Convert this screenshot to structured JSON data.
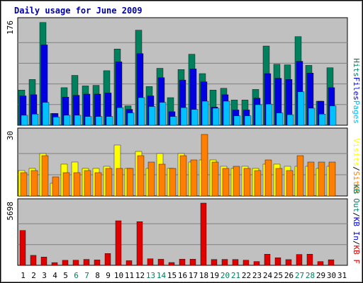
{
  "chart_data": {
    "type": "bar",
    "title": "Daily usage for June 2009",
    "categories": [
      "1",
      "2",
      "3",
      "4",
      "5",
      "6",
      "7",
      "8",
      "9",
      "10",
      "11",
      "12",
      "13",
      "14",
      "15",
      "16",
      "17",
      "18",
      "19",
      "20",
      "21",
      "22",
      "23",
      "24",
      "25",
      "26",
      "27",
      "28",
      "29",
      "30",
      "31"
    ],
    "weekend_days": [
      "6",
      "7",
      "13",
      "14",
      "20",
      "21",
      "27",
      "28"
    ],
    "colors": {
      "title": "#0000a0",
      "weekday_label": "#000000",
      "weekend_label": "#00805c",
      "hits": "#00805c",
      "files": "#0000e0",
      "pages": "#00c0ff",
      "visits": "#ffff00",
      "sites": "#ff8000",
      "kb_in": "#0000e0",
      "kb_out": "#00805c",
      "kb_f": "#e00000",
      "panel_bg": "#c0c0c0"
    },
    "panels": [
      {
        "name": "hits-files-pages",
        "ymax_label": "176",
        "ylim": [
          0,
          176
        ],
        "legend": [
          {
            "label": "Pages",
            "color": "#00c0ff"
          },
          {
            "label": "Files",
            "color": "#0000e0"
          },
          {
            "label": "Hits",
            "color": "#00805c"
          }
        ],
        "series": [
          {
            "name": "Hits",
            "values": [
              60,
              78,
              175,
              20,
              64,
              85,
              67,
              68,
              93,
              130,
              33,
              162,
              66,
              97,
              47,
              95,
              121,
              88,
              60,
              63,
              43,
              43,
              61,
              135,
              104,
              103,
              151,
              102,
              41,
              98,
              0
            ]
          },
          {
            "name": "Files",
            "values": [
              50,
              52,
              137,
              20,
              48,
              51,
              53,
              53,
              55,
              108,
              27,
              122,
              50,
              81,
              23,
              77,
              96,
              74,
              31,
              52,
              26,
              26,
              46,
              88,
              80,
              78,
              109,
              89,
              41,
              64,
              0
            ]
          },
          {
            "name": "Pages",
            "values": [
              17,
              19,
              39,
              14,
              17,
              17,
              15,
              15,
              15,
              30,
              21,
              47,
              32,
              39,
              15,
              30,
              27,
              41,
              29,
              41,
              16,
              16,
              35,
              36,
              21,
              18,
              57,
              29,
              19,
              33,
              0
            ]
          }
        ]
      },
      {
        "name": "visits-sites",
        "ymax_label": "30",
        "ylim": [
          0,
          30
        ],
        "legend": [
          {
            "label": "Sites",
            "color": "#ff8000"
          },
          {
            "label": "/",
            "color": "#000000"
          },
          {
            "label": "Visits",
            "color": "#ffff00"
          }
        ],
        "series": [
          {
            "name": "Visits",
            "values": [
              12,
              13,
              20,
              6,
              15,
              16,
              13,
              13,
              14,
              24,
              13,
              21,
              13,
              20,
              13,
              20,
              16,
              17,
              17,
              14,
              13,
              14,
              13,
              15,
              15,
              14,
              14,
              14,
              13,
              14,
              0
            ]
          },
          {
            "name": "Sites",
            "values": [
              11,
              12,
              19,
              9,
              11,
              11,
              12,
              11,
              13,
              13,
              13,
              19,
              16,
              15,
              13,
              19,
              17,
              29,
              16,
              13,
              14,
              13,
              12,
              17,
              13,
              12,
              19,
              16,
              16,
              16,
              0
            ]
          }
        ]
      },
      {
        "name": "kbytes",
        "ymax_label": "5698",
        "ylim": [
          0,
          5698
        ],
        "legend": [
          {
            "label": "KB F",
            "color": "#e00000"
          },
          {
            "label": "/",
            "color": "#000000"
          },
          {
            "label": "KB In",
            "color": "#0000e0"
          },
          {
            "label": "/",
            "color": "#000000"
          },
          {
            "label": "KB Out",
            "color": "#00805c"
          }
        ],
        "series": [
          {
            "name": "KB F",
            "values": [
              3195,
              910,
              757,
              252,
              462,
              474,
              542,
              490,
              1085,
              4080,
              429,
              4004,
              595,
              560,
              262,
              565,
              565,
              5698,
              529,
              542,
              529,
              474,
              350,
              1015,
              700,
              525,
              1000,
              1020,
              350,
              510,
              0
            ]
          }
        ]
      }
    ]
  }
}
